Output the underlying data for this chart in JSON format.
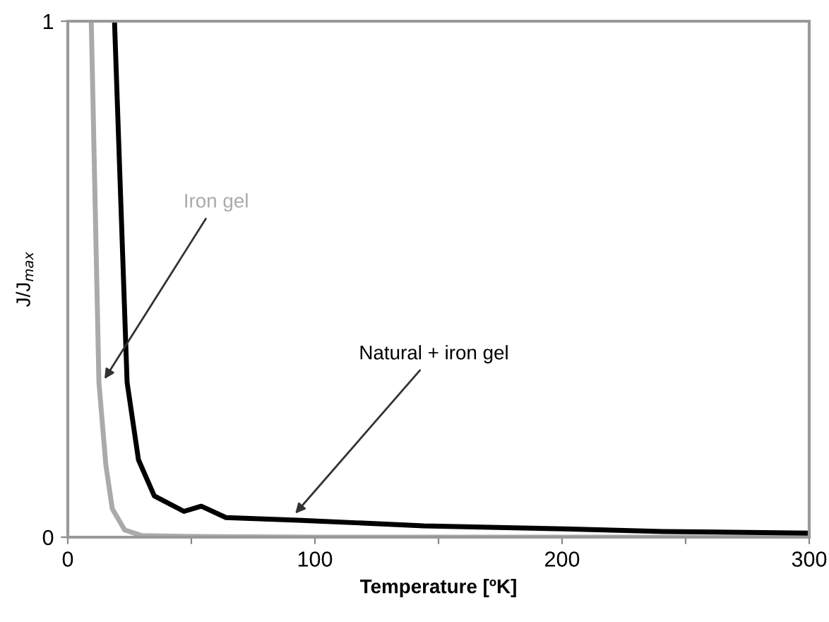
{
  "chart_data": {
    "type": "line",
    "xlabel": "Temperature [ºK]",
    "ylabel": "J/J$_{max}$",
    "series": [
      {
        "color": "#aaaaaa",
        "x": [
          9.5,
          12.6,
          15.4,
          18,
          23,
          30,
          58,
          100,
          300
        ],
        "values": [
          1,
          0.3,
          0.14,
          0.055,
          0.014,
          0.003,
          0.001,
          0,
          0
        ]
      },
      {
        "color": "#000000",
        "x": [
          18.9,
          24,
          28.6,
          35,
          47,
          54,
          64,
          93,
          144,
          201,
          241,
          300
        ],
        "values": [
          1,
          0.3,
          0.15,
          0.08,
          0.05,
          0.06,
          0.038,
          0.033,
          0.022,
          0.016,
          0.011,
          0.008
        ]
      }
    ],
    "annotations": [
      {
        "text": "Iron gel",
        "x": 14,
        "y": 0.3
      },
      {
        "text": "Natural + iron gel",
        "x": 91,
        "y": 0.04
      }
    ],
    "xlim": [
      0,
      300
    ],
    "xticks": [
      0,
      {
        "value": 50,
        "label": null
      },
      100,
      {
        "value": 150,
        "label": null
      },
      200,
      {
        "value": 250,
        "label": null
      },
      300
    ],
    "ylim": [
      0,
      1
    ],
    "yticks": [
      0,
      1
    ],
    "grid": false,
    "legend": false,
    "marker": "none",
    "line_style": "solid"
  }
}
